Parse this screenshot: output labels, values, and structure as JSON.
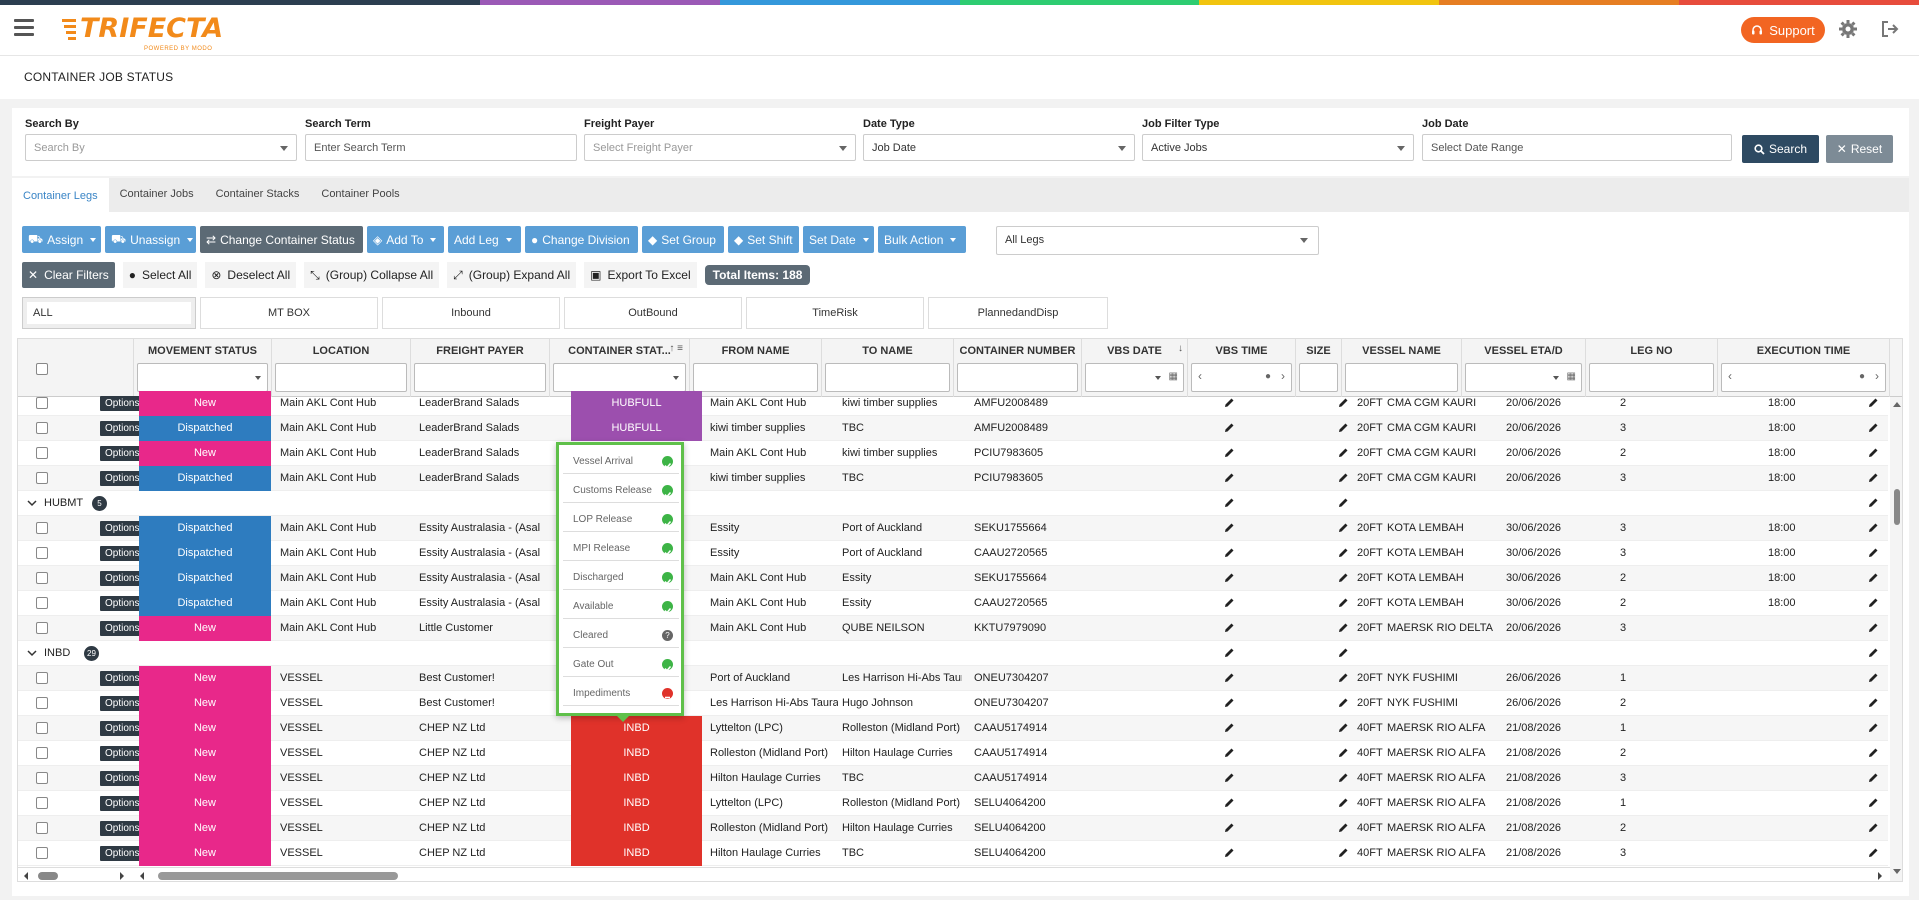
{
  "app": {
    "logo": "TRIFECTA",
    "logo_sub": "POWERED BY MODO",
    "support_label": "Support",
    "stripe_colors": [
      "#2c3e50",
      "#2c3e50",
      "#9b59b6",
      "#3498db",
      "#2ecc71",
      "#f1c40f",
      "#e67e22",
      "#e74c3c"
    ]
  },
  "page_title": "CONTAINER JOB STATUS",
  "filters": {
    "search_by": {
      "label": "Search By",
      "placeholder": "Search By"
    },
    "search_term": {
      "label": "Search Term",
      "placeholder": "Enter Search Term"
    },
    "freight_payer": {
      "label": "Freight Payer",
      "placeholder": "Select Freight Payer"
    },
    "date_type": {
      "label": "Date Type",
      "value": "Job Date"
    },
    "job_filter_type": {
      "label": "Job Filter Type",
      "value": "Active Jobs"
    },
    "job_date": {
      "label": "Job Date",
      "placeholder": "Select Date Range"
    },
    "search_btn": "Search",
    "reset_btn": "Reset"
  },
  "tabs": [
    "Container Legs",
    "Container Jobs",
    "Container Stacks",
    "Container Pools"
  ],
  "toolbar": {
    "assign": "Assign",
    "unassign": "Unassign",
    "change_status": "Change Container Status",
    "add_to": "Add To",
    "add_leg": "Add Leg",
    "change_division": "Change Division",
    "set_group": "Set Group",
    "set_shift": "Set Shift",
    "set_date": "Set Date",
    "bulk_action": "Bulk Action",
    "legs_select": "All Legs"
  },
  "toolbar2": {
    "clear_filters": "Clear Filters",
    "select_all": "Select All",
    "deselect_all": "Deselect All",
    "collapse_all": "(Group) Collapse All",
    "expand_all": "(Group) Expand All",
    "export": "Export To Excel",
    "total": "Total Items: 188"
  },
  "quick": [
    "ALL",
    "MT BOX",
    "Inbound",
    "OutBound",
    "TimeRisk",
    "PlannedandDisp"
  ],
  "columns": [
    "MOVEMENT STATUS",
    "LOCATION",
    "FREIGHT PAYER",
    "CONTAINER STAT...",
    "FROM NAME",
    "TO NAME",
    "CONTAINER NUMBER",
    "VBS DATE",
    "VBS TIME",
    "SIZE",
    "VESSEL NAME",
    "VESSEL ETA/D",
    "LEG NO",
    "EXECUTION TIME"
  ],
  "options_label": "Options",
  "rows": [
    {
      "kind": "data",
      "status": "New",
      "location": "Main AKL Cont Hub",
      "payer": "LeaderBrand Salads",
      "cstat": "HUBFULL",
      "from": "Main AKL Cont Hub",
      "to": "kiwi timber supplies",
      "cnum": "AMFU2008489",
      "size": "20FT",
      "vessel": "CMA CGM KAURI",
      "eta": "20/06/2026",
      "leg": "2",
      "exec": "18:00"
    },
    {
      "kind": "data",
      "status": "Dispatched",
      "location": "Main AKL Cont Hub",
      "payer": "LeaderBrand Salads",
      "cstat": "HUBFULL",
      "from": "kiwi timber supplies",
      "to": "TBC",
      "cnum": "AMFU2008489",
      "size": "20FT",
      "vessel": "CMA CGM KAURI",
      "eta": "20/06/2026",
      "leg": "3",
      "exec": "18:00"
    },
    {
      "kind": "data",
      "status": "New",
      "location": "Main AKL Cont Hub",
      "payer": "LeaderBrand Salads",
      "cstat": "",
      "from": "Main AKL Cont Hub",
      "to": "kiwi timber supplies",
      "cnum": "PCIU7983605",
      "size": "20FT",
      "vessel": "CMA CGM KAURI",
      "eta": "20/06/2026",
      "leg": "2",
      "exec": "18:00"
    },
    {
      "kind": "data",
      "status": "Dispatched",
      "location": "Main AKL Cont Hub",
      "payer": "LeaderBrand Salads",
      "cstat": "",
      "from": "kiwi timber supplies",
      "to": "TBC",
      "cnum": "PCIU7983605",
      "size": "20FT",
      "vessel": "CMA CGM KAURI",
      "eta": "20/06/2026",
      "leg": "3",
      "exec": "18:00"
    },
    {
      "kind": "group",
      "title": "HUBMT",
      "count": "5"
    },
    {
      "kind": "data",
      "status": "Dispatched",
      "location": "Main AKL Cont Hub",
      "payer": "Essity Australasia - (Asal",
      "cstat": "",
      "from": "Essity",
      "to": "Port of Auckland",
      "cnum": "SEKU1755664",
      "size": "20FT",
      "vessel": "KOTA LEMBAH",
      "eta": "30/06/2026",
      "leg": "3",
      "exec": "18:00"
    },
    {
      "kind": "data",
      "status": "Dispatched",
      "location": "Main AKL Cont Hub",
      "payer": "Essity Australasia - (Asal",
      "cstat": "",
      "from": "Essity",
      "to": "Port of Auckland",
      "cnum": "CAAU2720565",
      "size": "20FT",
      "vessel": "KOTA LEMBAH",
      "eta": "30/06/2026",
      "leg": "3",
      "exec": "18:00"
    },
    {
      "kind": "data",
      "status": "Dispatched",
      "location": "Main AKL Cont Hub",
      "payer": "Essity Australasia - (Asal",
      "cstat": "",
      "from": "Main AKL Cont Hub",
      "to": "Essity",
      "cnum": "SEKU1755664",
      "size": "20FT",
      "vessel": "KOTA LEMBAH",
      "eta": "30/06/2026",
      "leg": "2",
      "exec": "18:00"
    },
    {
      "kind": "data",
      "status": "Dispatched",
      "location": "Main AKL Cont Hub",
      "payer": "Essity Australasia - (Asal",
      "cstat": "",
      "from": "Main AKL Cont Hub",
      "to": "Essity",
      "cnum": "CAAU2720565",
      "size": "20FT",
      "vessel": "KOTA LEMBAH",
      "eta": "30/06/2026",
      "leg": "2",
      "exec": "18:00"
    },
    {
      "kind": "data",
      "status": "New",
      "location": "Main AKL Cont Hub",
      "payer": "Little Customer",
      "cstat": "",
      "from": "Main AKL Cont Hub",
      "to": "QUBE NEILSON",
      "cnum": "KKTU7979090",
      "size": "20FT",
      "vessel": "MAERSK RIO DELTA",
      "eta": "20/06/2026",
      "leg": "3",
      "exec": ""
    },
    {
      "kind": "group",
      "title": "INBD",
      "count": "29"
    },
    {
      "kind": "data",
      "status": "New",
      "location": "VESSEL",
      "payer": "Best Customer!",
      "cstat": "",
      "from": "Port of Auckland",
      "to": "Les Harrison Hi-Abs Taura",
      "cnum": "ONEU7304207",
      "size": "20FT",
      "vessel": "NYK FUSHIMI",
      "eta": "26/06/2026",
      "leg": "1",
      "exec": ""
    },
    {
      "kind": "data",
      "status": "New",
      "location": "VESSEL",
      "payer": "Best Customer!",
      "cstat": "",
      "from": "Les Harrison Hi-Abs Tauranga",
      "to": "Hugo Johnson",
      "cnum": "ONEU7304207",
      "size": "20FT",
      "vessel": "NYK FUSHIMI",
      "eta": "26/06/2026",
      "leg": "2",
      "exec": ""
    },
    {
      "kind": "data",
      "status": "New",
      "location": "VESSEL",
      "payer": "CHEP NZ Ltd",
      "cstat": "INBD",
      "from": "Lyttelton (LPC)",
      "to": "Rolleston (Midland Port)",
      "cnum": "CAAU5174914",
      "size": "40FT",
      "vessel": "MAERSK RIO ALFA",
      "eta": "21/08/2026",
      "leg": "1",
      "exec": ""
    },
    {
      "kind": "data",
      "status": "New",
      "location": "VESSEL",
      "payer": "CHEP NZ Ltd",
      "cstat": "INBD",
      "from": "Rolleston (Midland Port)",
      "to": "Hilton Haulage Curries",
      "cnum": "CAAU5174914",
      "size": "40FT",
      "vessel": "MAERSK RIO ALFA",
      "eta": "21/08/2026",
      "leg": "2",
      "exec": ""
    },
    {
      "kind": "data",
      "status": "New",
      "location": "VESSEL",
      "payer": "CHEP NZ Ltd",
      "cstat": "INBD",
      "from": "Hilton Haulage Curries",
      "to": "TBC",
      "cnum": "CAAU5174914",
      "size": "40FT",
      "vessel": "MAERSK RIO ALFA",
      "eta": "21/08/2026",
      "leg": "3",
      "exec": ""
    },
    {
      "kind": "data",
      "status": "New",
      "location": "VESSEL",
      "payer": "CHEP NZ Ltd",
      "cstat": "INBD",
      "from": "Lyttelton (LPC)",
      "to": "Rolleston (Midland Port)",
      "cnum": "SELU4064200",
      "size": "40FT",
      "vessel": "MAERSK RIO ALFA",
      "eta": "21/08/2026",
      "leg": "1",
      "exec": ""
    },
    {
      "kind": "data",
      "status": "New",
      "location": "VESSEL",
      "payer": "CHEP NZ Ltd",
      "cstat": "INBD",
      "from": "Rolleston (Midland Port)",
      "to": "Hilton Haulage Curries",
      "cnum": "SELU4064200",
      "size": "40FT",
      "vessel": "MAERSK RIO ALFA",
      "eta": "21/08/2026",
      "leg": "2",
      "exec": ""
    },
    {
      "kind": "data",
      "status": "New",
      "location": "VESSEL",
      "payer": "CHEP NZ Ltd",
      "cstat": "INBD",
      "from": "Hilton Haulage Curries",
      "to": "TBC",
      "cnum": "SELU4064200",
      "size": "40FT",
      "vessel": "MAERSK RIO ALFA",
      "eta": "21/08/2026",
      "leg": "3",
      "exec": ""
    }
  ],
  "popup": [
    {
      "label": "Vessel Arrival",
      "state": "ok"
    },
    {
      "label": "Customs Release",
      "state": "ok"
    },
    {
      "label": "LOP Release",
      "state": "ok"
    },
    {
      "label": "MPI Release",
      "state": "ok"
    },
    {
      "label": "Discharged",
      "state": "ok"
    },
    {
      "label": "Available",
      "state": "ok"
    },
    {
      "label": "Cleared",
      "state": "q"
    },
    {
      "label": "Gate Out",
      "state": "ok"
    },
    {
      "label": "Impediments",
      "state": "bad"
    }
  ]
}
